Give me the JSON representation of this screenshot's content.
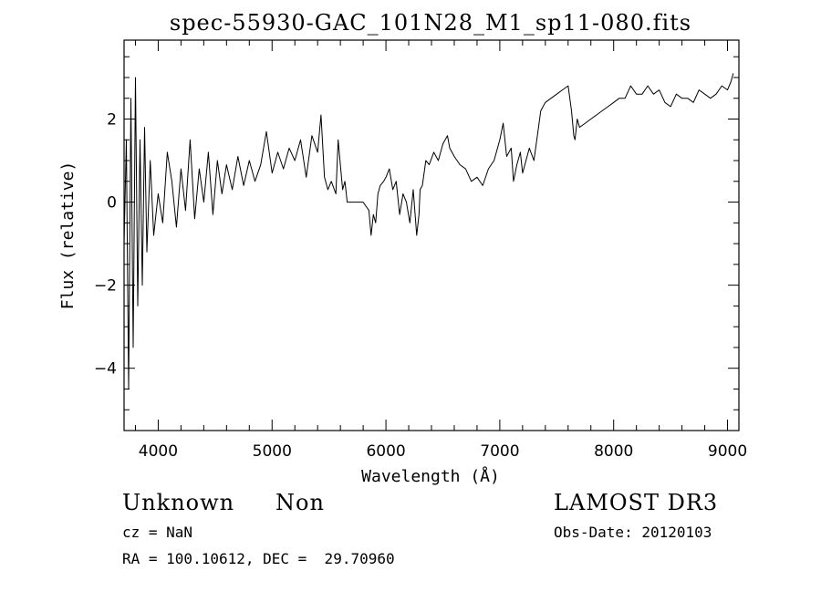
{
  "chart_data": {
    "type": "line",
    "title": "spec-55930-GAC_101N28_M1_sp11-080.fits",
    "xlabel": "Wavelength (Å)",
    "ylabel": "Flux (relative)",
    "xlim": [
      3700,
      9100
    ],
    "ylim": [
      -5.5,
      3.9
    ],
    "x_ticks": [
      4000,
      5000,
      6000,
      7000,
      8000,
      9000
    ],
    "y_ticks": [
      -4,
      -2,
      0,
      2
    ],
    "grid": false,
    "series": [
      {
        "color": "#000000",
        "x": [
          3700,
          3720,
          3740,
          3760,
          3780,
          3800,
          3820,
          3840,
          3860,
          3880,
          3900,
          3930,
          3960,
          4000,
          4040,
          4080,
          4120,
          4160,
          4200,
          4240,
          4280,
          4320,
          4360,
          4400,
          4440,
          4480,
          4520,
          4560,
          4600,
          4650,
          4700,
          4750,
          4800,
          4850,
          4900,
          4950,
          5000,
          5050,
          5100,
          5150,
          5200,
          5250,
          5300,
          5350,
          5400,
          5430,
          5460,
          5490,
          5520,
          5560,
          5580,
          5600,
          5620,
          5640,
          5660,
          5700,
          5750,
          5800,
          5850,
          5870,
          5890,
          5910,
          5930,
          5950,
          5980,
          6000,
          6030,
          6060,
          6090,
          6120,
          6150,
          6180,
          6210,
          6240,
          6270,
          6290,
          6300,
          6320,
          6350,
          6380,
          6420,
          6460,
          6500,
          6540,
          6560,
          6600,
          6650,
          6700,
          6750,
          6800,
          6850,
          6900,
          6950,
          7000,
          7030,
          7060,
          7100,
          7120,
          7150,
          7180,
          7200,
          7230,
          7260,
          7300,
          7330,
          7360,
          7400,
          7450,
          7500,
          7550,
          7600,
          7630,
          7650,
          7660,
          7680,
          7700,
          7750,
          7800,
          7850,
          7900,
          7950,
          8000,
          8050,
          8100,
          8150,
          8200,
          8250,
          8300,
          8350,
          8400,
          8450,
          8500,
          8550,
          8600,
          8650,
          8700,
          8750,
          8800,
          8850,
          8900,
          8950,
          9000,
          9030,
          9050
        ],
        "y": [
          -1.0,
          1.5,
          -4.5,
          2.5,
          -3.5,
          3.0,
          -2.5,
          1.5,
          -2.0,
          1.8,
          -1.2,
          1.0,
          -0.8,
          0.2,
          -0.5,
          1.2,
          0.5,
          -0.6,
          0.8,
          -0.2,
          1.5,
          -0.4,
          0.8,
          0.0,
          1.2,
          -0.3,
          1.0,
          0.2,
          0.9,
          0.3,
          1.1,
          0.4,
          1.0,
          0.5,
          0.9,
          1.7,
          0.7,
          1.2,
          0.8,
          1.3,
          1.0,
          1.5,
          0.6,
          1.6,
          1.2,
          2.1,
          0.6,
          0.3,
          0.5,
          0.2,
          1.5,
          0.9,
          0.3,
          0.5,
          0.0,
          0.0,
          0.0,
          0.0,
          -0.2,
          -0.8,
          -0.3,
          -0.5,
          0.2,
          0.4,
          0.5,
          0.6,
          0.8,
          0.3,
          0.5,
          -0.3,
          0.2,
          0.0,
          -0.5,
          0.3,
          -0.8,
          -0.3,
          0.3,
          0.4,
          1.0,
          0.9,
          1.2,
          1.0,
          1.4,
          1.6,
          1.3,
          1.1,
          0.9,
          0.8,
          0.5,
          0.6,
          0.4,
          0.8,
          1.0,
          1.5,
          1.9,
          1.1,
          1.3,
          0.5,
          0.9,
          1.2,
          0.7,
          1.0,
          1.3,
          1.0,
          1.6,
          2.2,
          2.4,
          2.5,
          2.6,
          2.7,
          2.8,
          2.2,
          1.6,
          1.5,
          2.0,
          1.8,
          1.9,
          2.0,
          2.1,
          2.2,
          2.3,
          2.4,
          2.5,
          2.5,
          2.8,
          2.6,
          2.6,
          2.8,
          2.6,
          2.7,
          2.4,
          2.3,
          2.6,
          2.5,
          2.5,
          2.4,
          2.7,
          2.6,
          2.5,
          2.6,
          2.8,
          2.7,
          2.9,
          3.1
        ]
      }
    ]
  },
  "annotations": {
    "object_class": "Unknown",
    "subclass": "Non",
    "survey": "LAMOST DR3",
    "cz": "cz = NaN",
    "obs_date": "Obs-Date: 20120103",
    "coords": "RA = 100.10612, DEC =  29.70960"
  }
}
